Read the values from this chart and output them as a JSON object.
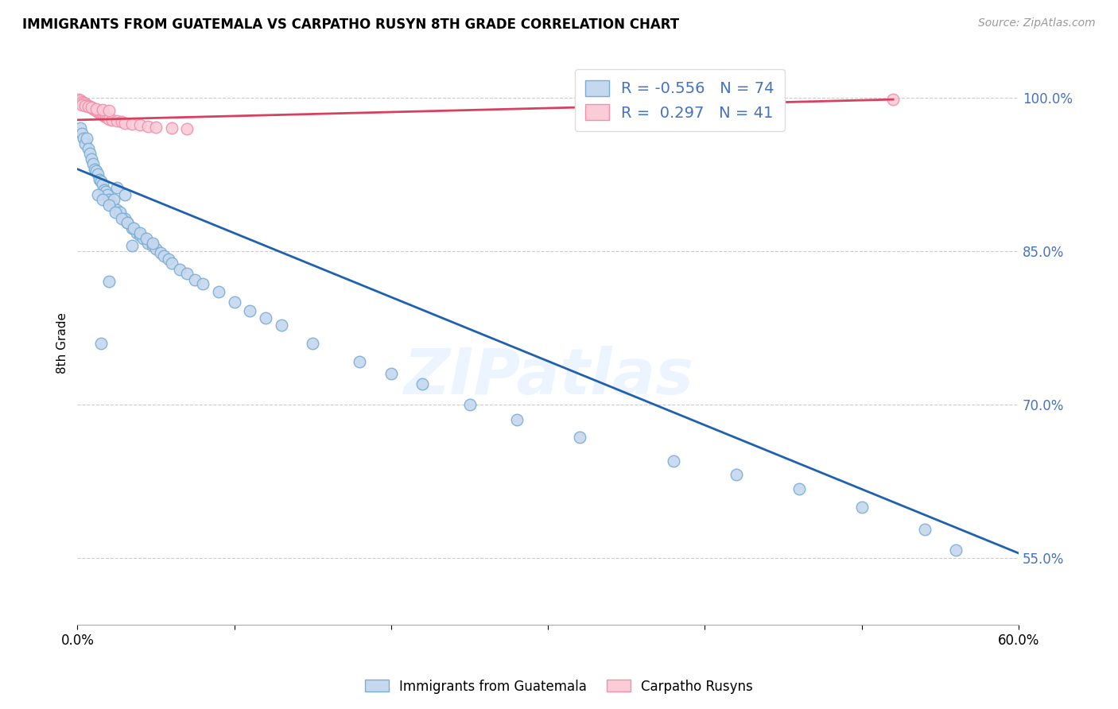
{
  "title": "IMMIGRANTS FROM GUATEMALA VS CARPATHO RUSYN 8TH GRADE CORRELATION CHART",
  "source": "Source: ZipAtlas.com",
  "ylabel": "8th Grade",
  "right_yticks": [
    1.0,
    0.85,
    0.7,
    0.55
  ],
  "right_yticklabels": [
    "100.0%",
    "85.0%",
    "70.0%",
    "55.0%"
  ],
  "xlim": [
    0.0,
    0.6
  ],
  "ylim": [
    0.485,
    1.035
  ],
  "blue_R": -0.556,
  "blue_N": 74,
  "pink_R": 0.297,
  "pink_N": 41,
  "blue_color": "#c5d8ee",
  "blue_edge_color": "#7aadd4",
  "pink_color": "#f9ccd8",
  "pink_edge_color": "#f090aa",
  "blue_line_color": "#2060b0",
  "pink_line_color": "#d84060",
  "legend_label_blue": "Immigrants from Guatemala",
  "legend_label_pink": "Carpatho Rusyns",
  "watermark": "ZIPatlas",
  "blue_line_x0": 0.0,
  "blue_line_y0": 0.93,
  "blue_line_x1": 0.6,
  "blue_line_y1": 0.555,
  "pink_line_x0": 0.0,
  "pink_line_y0": 0.978,
  "pink_line_x1": 0.52,
  "pink_line_y1": 0.998,
  "blue_x": [
    0.002,
    0.003,
    0.004,
    0.005,
    0.006,
    0.007,
    0.008,
    0.009,
    0.01,
    0.011,
    0.012,
    0.013,
    0.014,
    0.015,
    0.016,
    0.017,
    0.018,
    0.019,
    0.02,
    0.021,
    0.022,
    0.023,
    0.025,
    0.027,
    0.03,
    0.032,
    0.035,
    0.038,
    0.04,
    0.042,
    0.045,
    0.048,
    0.05,
    0.053,
    0.055,
    0.058,
    0.06,
    0.065,
    0.07,
    0.075,
    0.013,
    0.016,
    0.02,
    0.024,
    0.028,
    0.032,
    0.036,
    0.04,
    0.044,
    0.048,
    0.025,
    0.03,
    0.035,
    0.08,
    0.09,
    0.1,
    0.11,
    0.12,
    0.13,
    0.15,
    0.18,
    0.2,
    0.22,
    0.25,
    0.28,
    0.32,
    0.38,
    0.42,
    0.46,
    0.5,
    0.54,
    0.56,
    0.015,
    0.02
  ],
  "blue_y": [
    0.97,
    0.965,
    0.96,
    0.955,
    0.96,
    0.95,
    0.945,
    0.94,
    0.935,
    0.93,
    0.928,
    0.925,
    0.92,
    0.918,
    0.915,
    0.91,
    0.908,
    0.905,
    0.9,
    0.898,
    0.895,
    0.9,
    0.89,
    0.888,
    0.882,
    0.878,
    0.872,
    0.868,
    0.865,
    0.862,
    0.858,
    0.855,
    0.852,
    0.848,
    0.845,
    0.842,
    0.838,
    0.832,
    0.828,
    0.822,
    0.905,
    0.9,
    0.895,
    0.888,
    0.882,
    0.878,
    0.872,
    0.868,
    0.862,
    0.858,
    0.912,
    0.905,
    0.855,
    0.818,
    0.81,
    0.8,
    0.792,
    0.785,
    0.778,
    0.76,
    0.742,
    0.73,
    0.72,
    0.7,
    0.685,
    0.668,
    0.645,
    0.632,
    0.618,
    0.6,
    0.578,
    0.558,
    0.76,
    0.82
  ],
  "pink_x": [
    0.001,
    0.002,
    0.003,
    0.004,
    0.005,
    0.006,
    0.007,
    0.008,
    0.009,
    0.01,
    0.011,
    0.012,
    0.013,
    0.014,
    0.015,
    0.016,
    0.017,
    0.018,
    0.019,
    0.02,
    0.022,
    0.025,
    0.028,
    0.03,
    0.035,
    0.04,
    0.045,
    0.05,
    0.06,
    0.07,
    0.003,
    0.005,
    0.007,
    0.009,
    0.012,
    0.016,
    0.02,
    0.33,
    0.34,
    0.35,
    0.52
  ],
  "pink_y": [
    0.998,
    0.997,
    0.996,
    0.995,
    0.994,
    0.993,
    0.992,
    0.991,
    0.99,
    0.989,
    0.988,
    0.987,
    0.986,
    0.985,
    0.984,
    0.983,
    0.982,
    0.981,
    0.98,
    0.979,
    0.978,
    0.977,
    0.976,
    0.975,
    0.974,
    0.973,
    0.972,
    0.971,
    0.97,
    0.969,
    0.993,
    0.992,
    0.991,
    0.99,
    0.989,
    0.988,
    0.987,
    0.992,
    0.994,
    0.996,
    0.998
  ]
}
